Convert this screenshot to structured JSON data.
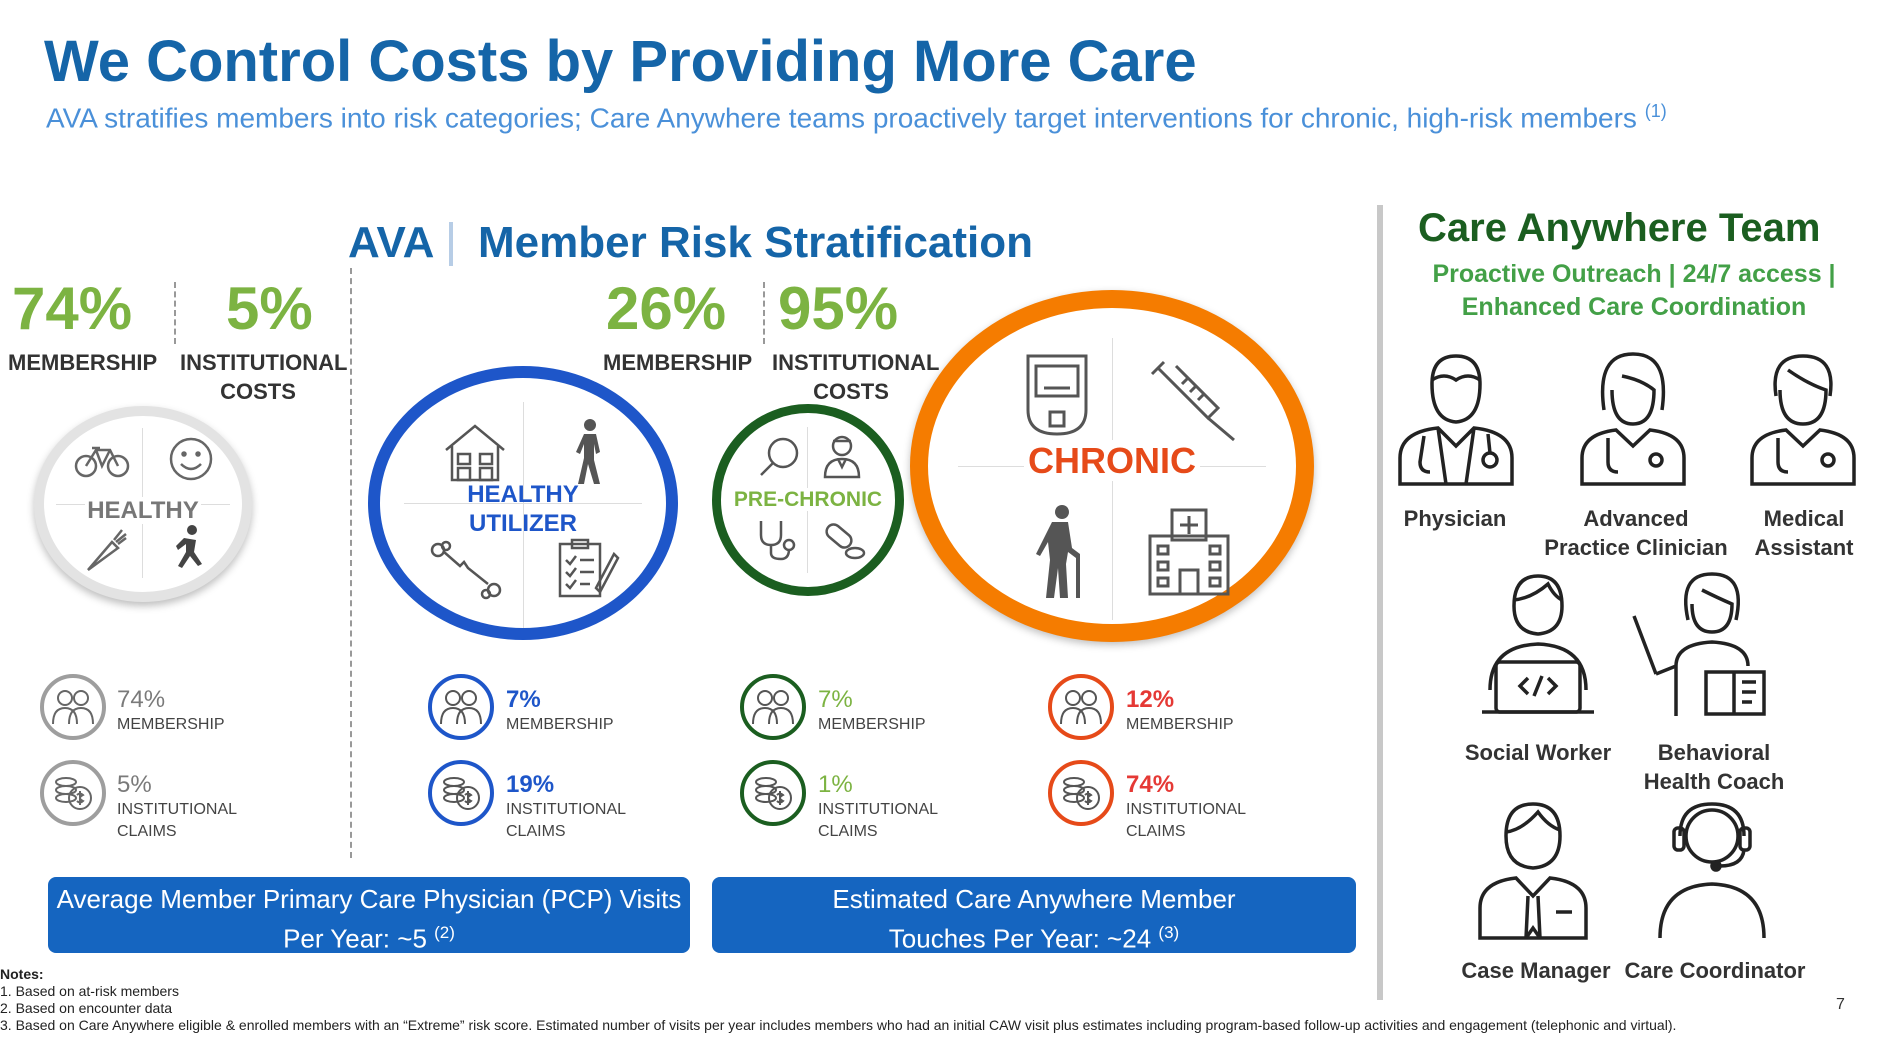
{
  "header": {
    "title": "We Control Costs by Providing More Care",
    "subtitle": "AVA stratifies members into risk categories; Care Anywhere teams proactively target interventions for chronic, high-risk members",
    "subtitle_note": "(1)"
  },
  "stratification": {
    "prefix": "AVA",
    "heading": "Member Risk Stratification",
    "left_summary": {
      "membership_pct": "74%",
      "membership_label": "MEMBERSHIP",
      "costs_pct": "5%",
      "costs_label_1": "INSTITUTIONAL",
      "costs_label_2": "COSTS"
    },
    "right_summary": {
      "membership_pct": "26%",
      "membership_label": "MEMBERSHIP",
      "costs_pct": "95%",
      "costs_label_1": "INSTITUTIONAL",
      "costs_label_2": "COSTS"
    },
    "segments": [
      {
        "name": "HEALTHY",
        "membership_pct": "74%",
        "membership_label": "MEMBERSHIP",
        "claims_pct": "5%",
        "claims_label_1": "INSTITUTIONAL",
        "claims_label_2": "CLAIMS",
        "color": "#9e9e9e"
      },
      {
        "name_1": "HEALTHY",
        "name_2": "UTILIZER",
        "membership_pct": "7%",
        "membership_label": "MEMBERSHIP",
        "claims_pct": "19%",
        "claims_label_1": "INSTITUTIONAL",
        "claims_label_2": "CLAIMS",
        "color": "#1e56c9"
      },
      {
        "name": "PRE-CHRONIC",
        "membership_pct": "7%",
        "membership_label": "MEMBERSHIP",
        "claims_pct": "1%",
        "claims_label_1": "INSTITUTIONAL",
        "claims_label_2": "CLAIMS",
        "color": "#1b5e20"
      },
      {
        "name": "CHRONIC",
        "membership_pct": "12%",
        "membership_label": "MEMBERSHIP",
        "claims_pct": "74%",
        "claims_label_1": "INSTITUTIONAL",
        "claims_label_2": "CLAIMS",
        "color": "#e64a19"
      }
    ],
    "icons": {
      "healthy": [
        "bicycle-icon",
        "smiley-icon",
        "carrot-icon",
        "running-person-icon"
      ],
      "utilizer": [
        "house-icon",
        "walking-person-icon",
        "broken-bone-icon",
        "clipboard-icon"
      ],
      "prechronic": [
        "magnifier-icon",
        "doctor-icon",
        "stethoscope-icon",
        "pill-icon"
      ],
      "chronic": [
        "glucose-meter-icon",
        "syringe-icon",
        "elderly-person-icon",
        "hospital-icon"
      ]
    }
  },
  "banners": {
    "pcp_line_1": "Average Member Primary Care Physician (PCP) Visits",
    "pcp_line_2": "Per Year:  ~5",
    "pcp_note": "(2)",
    "touches_line_1": "Estimated Care Anywhere Member",
    "touches_line_2": "Touches Per Year:  ~24",
    "touches_note": "(3)"
  },
  "team": {
    "heading": "Care Anywhere Team",
    "sub_line_1": "Proactive Outreach | 24/7 access |",
    "sub_line_2": "Enhanced Care Coordination",
    "members": [
      {
        "label_1": "Physician",
        "label_2": ""
      },
      {
        "label_1": "Advanced",
        "label_2": "Practice Clinician"
      },
      {
        "label_1": "Medical",
        "label_2": "Assistant"
      },
      {
        "label_1": "Social Worker",
        "label_2": ""
      },
      {
        "label_1": "Behavioral",
        "label_2": "Health Coach"
      },
      {
        "label_1": "Case Manager",
        "label_2": ""
      },
      {
        "label_1": "Care Coordinator",
        "label_2": ""
      }
    ]
  },
  "notes": {
    "heading": "Notes:",
    "items": [
      "1. Based on at-risk members",
      "2. Based on encounter data",
      "3. Based on Care Anywhere eligible & enrolled members with an “Extreme” risk score. Estimated number of visits per year includes members who had an initial CAW visit plus estimates including program-based follow-up activities and engagement (telephonic and virtual)."
    ]
  },
  "page_number": "7",
  "colors": {
    "title_blue": "#1565a8",
    "subtitle_blue": "#4a90d9",
    "accent_green": "#7cb342",
    "team_green": "#1b5e20",
    "banner_blue": "#1565c0",
    "chronic_orange": "#f57c00",
    "chronic_red": "#e53935"
  }
}
